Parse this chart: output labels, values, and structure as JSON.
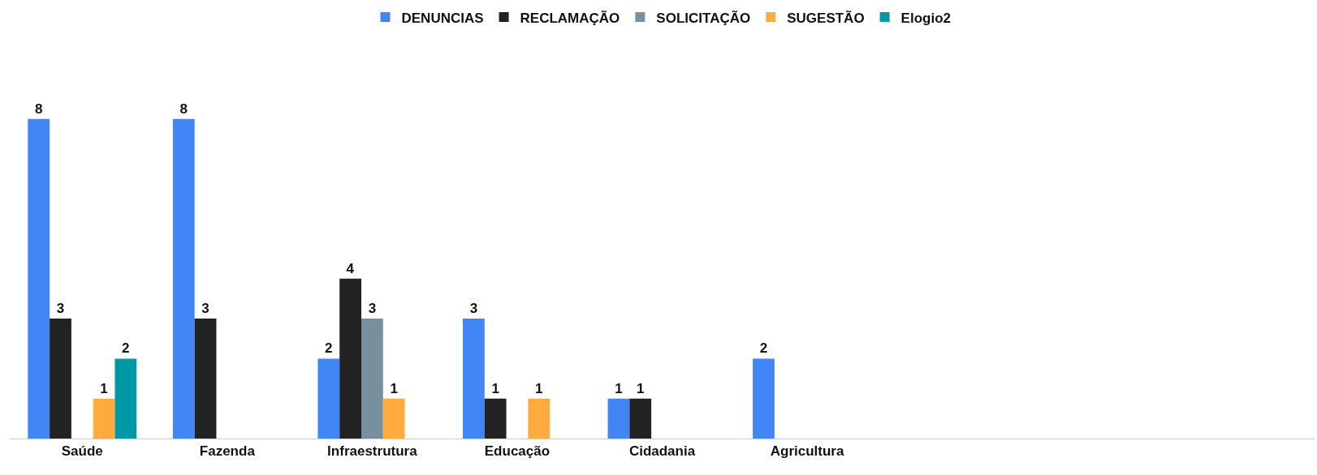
{
  "chart_data": {
    "type": "bar",
    "categories": [
      "Saúde",
      "Fazenda",
      "Infraestrutura",
      "Educação",
      "Cidadania",
      "Agricultura",
      null,
      null,
      null
    ],
    "series": [
      {
        "name": "DENUNCIAS",
        "color": "#4285f4",
        "values": [
          8,
          8,
          2,
          3,
          1,
          2,
          null,
          null,
          null
        ]
      },
      {
        "name": "RECLAMAÇÃO",
        "color": "#222222",
        "values": [
          3,
          3,
          4,
          1,
          1,
          null,
          null,
          null,
          null
        ]
      },
      {
        "name": "SOLICITAÇÃO",
        "color": "#78909c",
        "values": [
          null,
          null,
          3,
          null,
          null,
          null,
          null,
          null,
          null
        ]
      },
      {
        "name": "SUGESTÃO",
        "color": "#ffab40",
        "values": [
          1,
          null,
          1,
          1,
          null,
          null,
          null,
          null,
          null
        ]
      },
      {
        "name": "Elogio2",
        "color": "#0097a7",
        "values": [
          2,
          null,
          null,
          null,
          null,
          null,
          null,
          null,
          null
        ]
      }
    ],
    "data_labels": true,
    "legend": "top"
  }
}
